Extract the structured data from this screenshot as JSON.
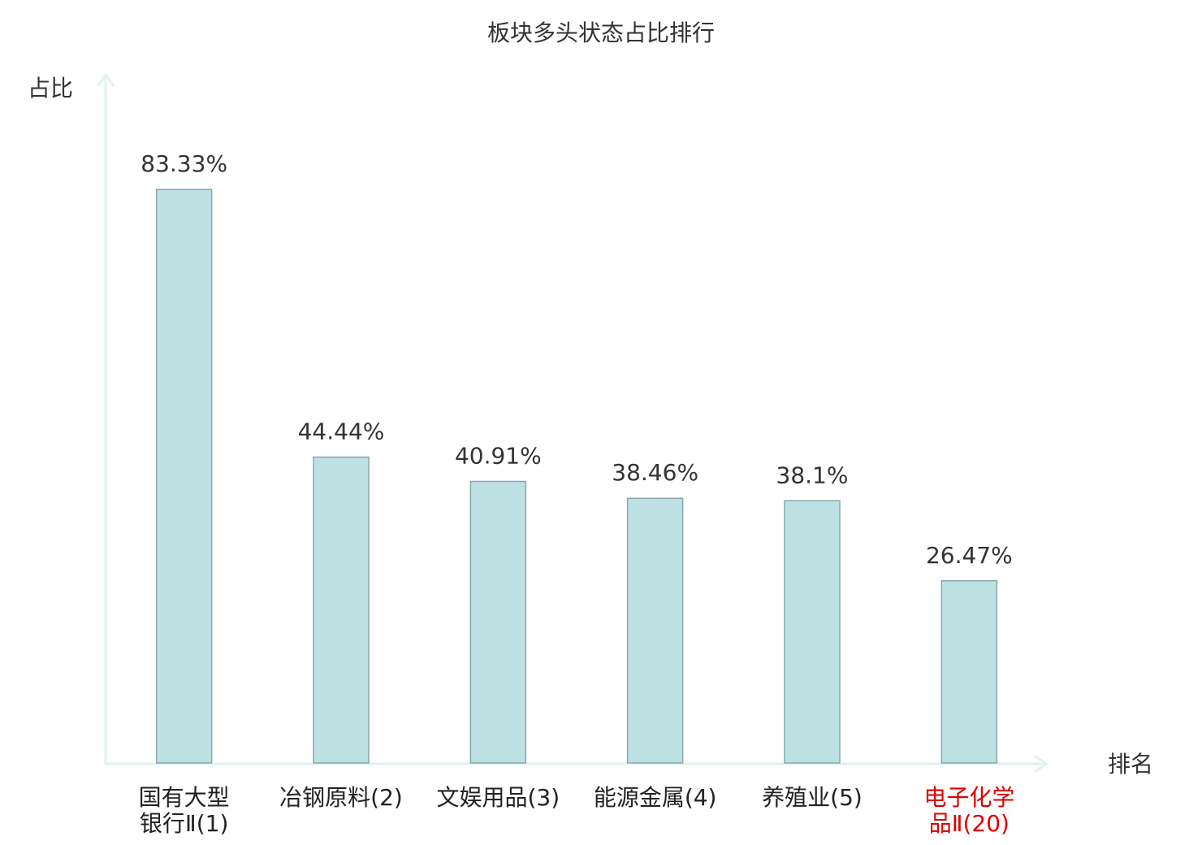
{
  "chart_data": {
    "type": "bar",
    "title": "板块多头状态占比排行",
    "y_label": "占比",
    "x_label": "排名",
    "categories": [
      "国有大型\n银行Ⅱ(1)",
      "冶钢原料(2)",
      "文娱用品(3)",
      "能源金属(4)",
      "养殖业(5)",
      "电子化学\n品Ⅱ(20)"
    ],
    "values": [
      83.33,
      44.44,
      40.91,
      38.46,
      38.1,
      26.47
    ],
    "value_labels": [
      "83.33%",
      "44.44%",
      "40.91%",
      "38.46%",
      "38.1%",
      "26.47%"
    ],
    "label_colors": [
      "#222222",
      "#222222",
      "#222222",
      "#222222",
      "#222222",
      "#e00000"
    ],
    "color": "#bde0e3",
    "ylim": [
      0,
      100
    ],
    "grid": false
  }
}
